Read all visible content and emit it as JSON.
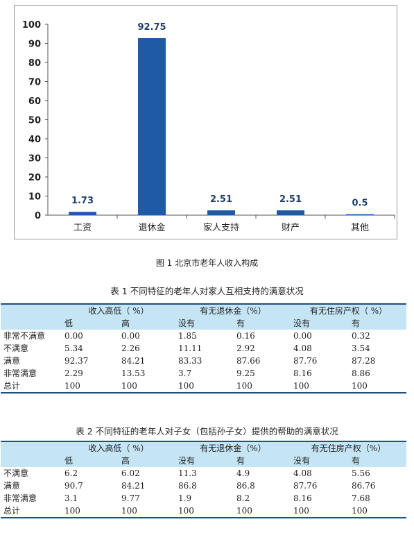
{
  "chart_data": {
    "type": "bar",
    "categories": [
      "工资",
      "退休金",
      "家人支持",
      "财产",
      "其他"
    ],
    "values": [
      1.73,
      92.75,
      2.51,
      2.51,
      0.5
    ],
    "value_labels": [
      "1.73",
      "92.75",
      "2.51",
      "2.51",
      "0.5"
    ],
    "ylim": [
      0,
      100
    ],
    "yticks": [
      "0",
      "10",
      "20",
      "30",
      "40",
      "50",
      "60",
      "70",
      "80",
      "90",
      "100"
    ],
    "grid": false,
    "bar_color": "#1f5aa6"
  },
  "figure_caption": "图 1 北京市老年人收入构成",
  "table1": {
    "caption": "表 1 不同特征的老年人对家人互相支持的满意状况",
    "groups": [
      "收入高低（ %）",
      "有无退休金（%）",
      "有无住房产权（ %）"
    ],
    "subheaders": [
      "低",
      "高",
      "没有",
      "有",
      "没有",
      "有"
    ],
    "rows": [
      {
        "label": "非常不满意",
        "cells": [
          "0.00",
          "0.00",
          "1.85",
          "0.16",
          "0.00",
          "0.32"
        ]
      },
      {
        "label": "不满意",
        "cells": [
          "5.34",
          "2.26",
          "11.11",
          "2.92",
          "4.08",
          "3.54"
        ]
      },
      {
        "label": "满意",
        "cells": [
          "92.37",
          "84.21",
          "83.33",
          "87.66",
          "87.76",
          "87.28"
        ]
      },
      {
        "label": "非常满意",
        "cells": [
          "2.29",
          "13.53",
          "3.7",
          "9.25",
          "8.16",
          "8.86"
        ]
      },
      {
        "label": "总计",
        "cells": [
          "100",
          "100",
          "100",
          "100",
          "100",
          "100"
        ]
      }
    ]
  },
  "table2": {
    "caption": "表 2 不同特征的老年人对子女（包括孙子女）提供的帮助的满意状况",
    "groups": [
      "收入高低（ %）",
      "有无退休金（%）",
      "有无住房产权（%）"
    ],
    "subheaders": [
      "低",
      "高",
      "没有",
      "有",
      "没有",
      "有"
    ],
    "rows": [
      {
        "label": "不满意",
        "cells": [
          "6.2",
          "6.02",
          "11.3",
          "4.9",
          "4.08",
          "5.56"
        ]
      },
      {
        "label": "满意",
        "cells": [
          "90.7",
          "84.21",
          "86.8",
          "86.8",
          "87.76",
          "86.76"
        ]
      },
      {
        "label": "非常满意",
        "cells": [
          "3.1",
          "9.77",
          "1.9",
          "8.2",
          "8.16",
          "7.68"
        ]
      },
      {
        "label": "总计",
        "cells": [
          "100",
          "100",
          "100",
          "100",
          "100",
          "100"
        ]
      }
    ]
  }
}
